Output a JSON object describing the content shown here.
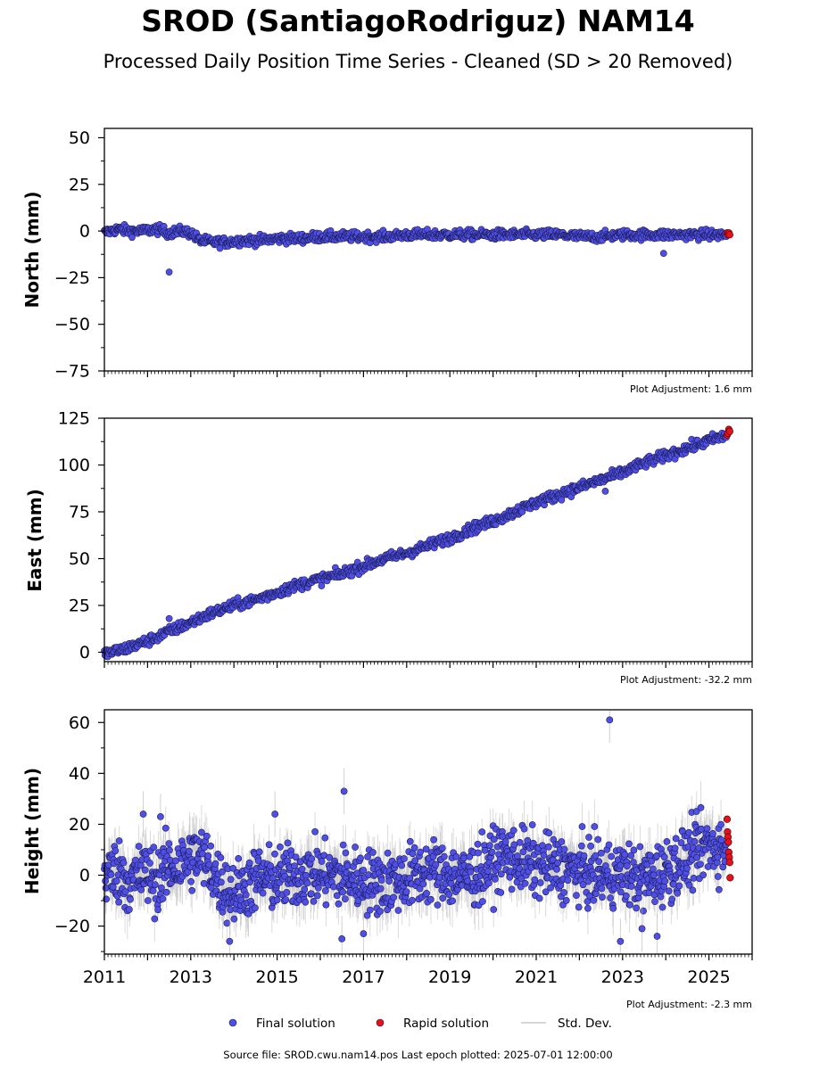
{
  "title": "SROD (SantiagoRodriguz) NAM14",
  "subtitle": "Processed Daily Position Time Series - Cleaned (SD > 20 Removed)",
  "source_text": "Source file: SROD.cwu.nam14.pos  Last epoch plotted: 2025-07-01 12:00:00",
  "colors": {
    "final": "#4f4fe6",
    "rapid": "#e8101a",
    "stddev": "#b0b0b0",
    "edge": "#1a1a50"
  },
  "legend": {
    "final": "Final solution",
    "rapid": "Rapid solution",
    "stddev": "Std. Dev."
  },
  "chart_data": [
    {
      "type": "scatter",
      "ylabel": "North (mm)",
      "ylim": [
        -75,
        55
      ],
      "yticks": [
        50,
        25,
        0,
        -25,
        -50,
        -75
      ],
      "yticklabels": [
        "50",
        "25",
        "0",
        "−25",
        "−50",
        "−75"
      ],
      "xlim": [
        2011.0,
        2026.0
      ],
      "adjustment": "Plot Adjustment: 1.6 mm",
      "series": [
        {
          "name": "Final solution",
          "x": [
            2011.0,
            2011.3,
            2011.6,
            2011.9,
            2012.2,
            2012.5,
            2012.8,
            2013.0,
            2013.2,
            2013.5,
            2013.8,
            2014.2,
            2014.6,
            2015.0,
            2015.5,
            2016.0,
            2016.5,
            2017.0,
            2017.5,
            2018.0,
            2018.5,
            2019.0,
            2019.5,
            2020.0,
            2020.5,
            2021.0,
            2021.5,
            2022.0,
            2022.5,
            2023.0,
            2023.5,
            2024.0,
            2024.5,
            2025.0,
            2025.4
          ],
          "y": [
            -1,
            1,
            0,
            0,
            1,
            -1,
            0,
            -1,
            -5,
            -6,
            -6,
            -5,
            -5,
            -4,
            -4,
            -3,
            -3,
            -3,
            -3,
            -2,
            -2,
            -2,
            -2,
            -2,
            -2,
            -2,
            -2,
            -3,
            -3,
            -2,
            -2,
            -2,
            -2,
            -2,
            -2
          ]
        },
        {
          "name": "Final solution outliers",
          "x": [
            2012.5,
            2023.95
          ],
          "y": [
            -22,
            -12
          ]
        },
        {
          "name": "Rapid solution",
          "x": [
            2025.42,
            2025.44,
            2025.46,
            2025.48
          ],
          "y": [
            -1,
            -2,
            -1,
            -2
          ]
        }
      ]
    },
    {
      "type": "scatter",
      "ylabel": "East (mm)",
      "ylim": [
        -5,
        125
      ],
      "yticks": [
        125,
        100,
        75,
        50,
        25,
        0
      ],
      "yticklabels": [
        "125",
        "100",
        "75",
        "50",
        "25",
        "0"
      ],
      "xlim": [
        2011.0,
        2026.0
      ],
      "adjustment": "Plot Adjustment: -32.2 mm",
      "series": [
        {
          "name": "Final solution",
          "x": [
            2011.0,
            2011.5,
            2012.0,
            2012.5,
            2013.0,
            2013.5,
            2014.0,
            2014.5,
            2015.0,
            2015.5,
            2016.0,
            2016.5,
            2017.0,
            2017.5,
            2018.0,
            2018.5,
            2019.0,
            2019.5,
            2020.0,
            2020.5,
            2021.0,
            2021.5,
            2022.0,
            2022.5,
            2023.0,
            2023.5,
            2024.0,
            2024.5,
            2025.0,
            2025.4
          ],
          "y": [
            -1,
            2,
            6,
            11,
            16,
            21,
            25,
            28,
            32,
            36,
            39,
            42,
            46,
            50,
            53,
            57,
            61,
            66,
            70,
            75,
            80,
            84,
            88,
            92,
            96,
            101,
            105,
            109,
            113,
            116
          ]
        },
        {
          "name": "Final solution outliers",
          "x": [
            2012.5,
            2022.6
          ],
          "y": [
            18,
            86
          ]
        },
        {
          "name": "Rapid solution",
          "x": [
            2025.42,
            2025.44,
            2025.46,
            2025.48
          ],
          "y": [
            116,
            117,
            119,
            118
          ]
        }
      ]
    },
    {
      "type": "scatter",
      "ylabel": "Height (mm)",
      "ylim": [
        -31,
        65
      ],
      "yticks": [
        60,
        40,
        20,
        0,
        -20
      ],
      "yticklabels": [
        "60",
        "40",
        "20",
        "0",
        "−20"
      ],
      "xlim": [
        2011.0,
        2026.0
      ],
      "xticks": [
        2011,
        2013,
        2015,
        2017,
        2019,
        2021,
        2023,
        2025
      ],
      "xticklabels": [
        "2011",
        "2013",
        "2015",
        "2017",
        "2019",
        "2021",
        "2023",
        "2025"
      ],
      "adjustment": "Plot Adjustment: -2.3 mm",
      "series": [
        {
          "name": "Final solution",
          "x": [
            2011.0,
            2011.3,
            2011.6,
            2011.9,
            2012.2,
            2012.5,
            2012.8,
            2013.1,
            2013.4,
            2013.7,
            2014.0,
            2014.3,
            2014.6,
            2015.0,
            2015.4,
            2015.8,
            2016.2,
            2016.6,
            2017.0,
            2017.4,
            2017.8,
            2018.2,
            2018.6,
            2019.0,
            2019.4,
            2019.8,
            2020.2,
            2020.6,
            2021.0,
            2021.4,
            2021.8,
            2022.2,
            2022.6,
            2023.0,
            2023.4,
            2023.8,
            2024.2,
            2024.6,
            2025.0,
            2025.4
          ],
          "y": [
            0,
            2,
            -3,
            1,
            -2,
            3,
            4,
            8,
            5,
            -4,
            -7,
            -4,
            -1,
            -2,
            0,
            1,
            0,
            -1,
            -2,
            -3,
            -2,
            0,
            2,
            0,
            -1,
            2,
            8,
            6,
            4,
            3,
            2,
            1,
            0,
            1,
            -2,
            0,
            4,
            8,
            12,
            10
          ]
        },
        {
          "name": "Final solution outliers",
          "x": [
            2011.9,
            2012.3,
            2014.95,
            2016.55,
            2022.7,
            2022.95,
            2023.45,
            2023.8,
            2016.5,
            2017.0,
            2013.9
          ],
          "y": [
            24,
            23,
            24,
            33,
            61,
            -26,
            -21,
            -24,
            -25,
            -23,
            -26
          ]
        },
        {
          "name": "Rapid solution",
          "x": [
            2025.42,
            2025.43,
            2025.44,
            2025.45,
            2025.46,
            2025.47,
            2025.48,
            2025.49
          ],
          "y": [
            22,
            17,
            15,
            13,
            9,
            7,
            5,
            -1
          ]
        }
      ]
    }
  ]
}
